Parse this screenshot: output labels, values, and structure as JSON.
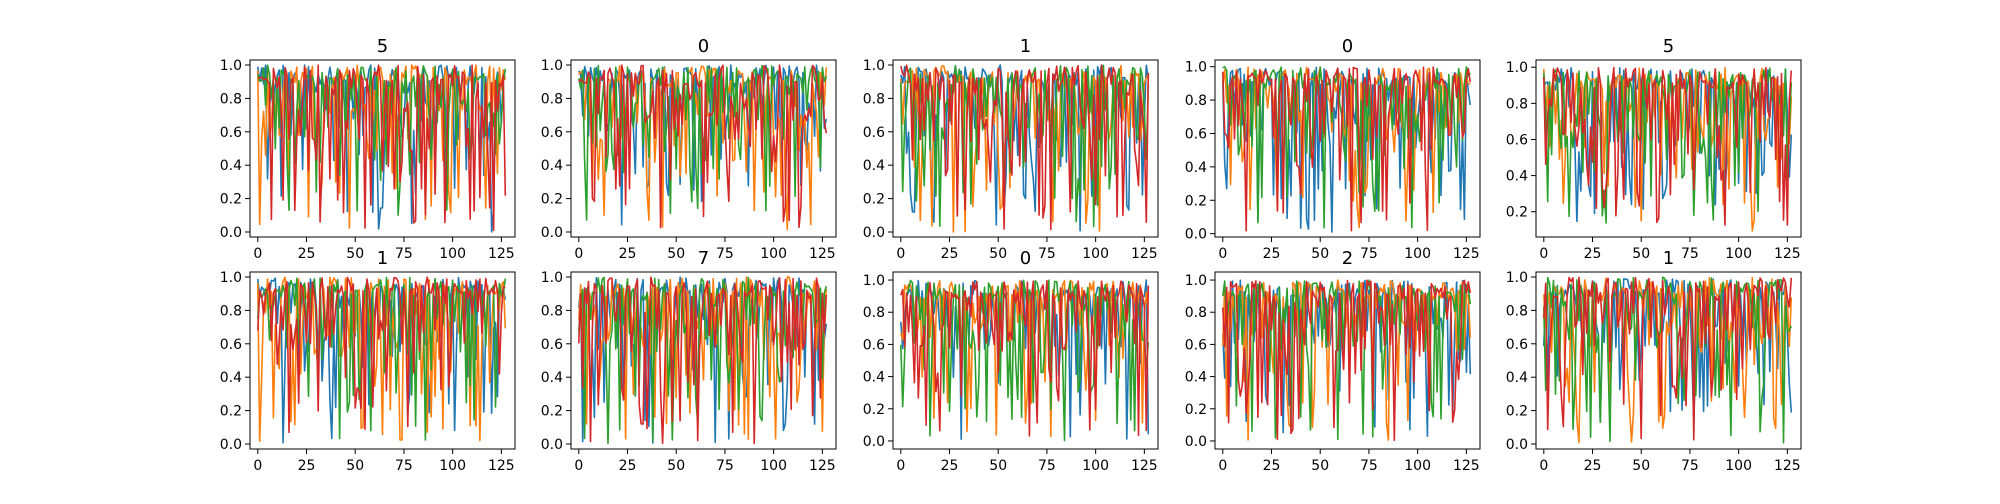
{
  "figure": {
    "series_colors": [
      "#1f77b4",
      "#ff7f0e",
      "#2ca02c",
      "#d62728"
    ]
  },
  "chart_data": [
    {
      "type": "line",
      "title": "5",
      "xlabel": "",
      "ylabel": "",
      "xlim": [
        -4,
        132
      ],
      "ylim": [
        -0.03,
        1.03
      ],
      "x_ticks": [
        0,
        25,
        50,
        75,
        100,
        125
      ],
      "x_tick_labels": [
        "0",
        "25",
        "50",
        "75",
        "100",
        "125"
      ],
      "y_ticks": [
        0.0,
        0.2,
        0.4,
        0.6,
        0.8,
        1.0
      ],
      "y_tick_labels": [
        "0.0",
        "0.2",
        "0.4",
        "0.6",
        "0.8",
        "1.0"
      ],
      "x_range": [
        0,
        127
      ],
      "n_points": 128,
      "series_count": 4,
      "grid": false,
      "legend": false
    },
    {
      "type": "line",
      "title": "0",
      "xlabel": "",
      "ylabel": "",
      "xlim": [
        -4,
        132
      ],
      "ylim": [
        -0.03,
        1.03
      ],
      "x_ticks": [
        0,
        25,
        50,
        75,
        100,
        125
      ],
      "x_tick_labels": [
        "0",
        "25",
        "50",
        "75",
        "100",
        "125"
      ],
      "y_ticks": [
        0.0,
        0.2,
        0.4,
        0.6,
        0.8,
        1.0
      ],
      "y_tick_labels": [
        "0.0",
        "0.2",
        "0.4",
        "0.6",
        "0.8",
        "1.0"
      ],
      "x_range": [
        0,
        127
      ],
      "n_points": 128,
      "series_count": 4,
      "grid": false,
      "legend": false
    },
    {
      "type": "line",
      "title": "1",
      "xlabel": "",
      "ylabel": "",
      "xlim": [
        -4,
        132
      ],
      "ylim": [
        -0.03,
        1.03
      ],
      "x_ticks": [
        0,
        25,
        50,
        75,
        100,
        125
      ],
      "x_tick_labels": [
        "0",
        "25",
        "50",
        "75",
        "100",
        "125"
      ],
      "y_ticks": [
        0.0,
        0.2,
        0.4,
        0.6,
        0.8,
        1.0
      ],
      "y_tick_labels": [
        "0.0",
        "0.2",
        "0.4",
        "0.6",
        "0.8",
        "1.0"
      ],
      "x_range": [
        0,
        127
      ],
      "n_points": 128,
      "series_count": 4,
      "grid": false,
      "legend": false
    },
    {
      "type": "line",
      "title": "0",
      "xlabel": "",
      "ylabel": "",
      "xlim": [
        -4,
        132
      ],
      "ylim": [
        -0.02,
        1.04
      ],
      "x_ticks": [
        0,
        25,
        50,
        75,
        100,
        125
      ],
      "x_tick_labels": [
        "0",
        "25",
        "50",
        "75",
        "100",
        "125"
      ],
      "y_ticks": [
        0.0,
        0.2,
        0.4,
        0.6,
        0.8,
        1.0
      ],
      "y_tick_labels": [
        "0.0",
        "0.2",
        "0.4",
        "0.6",
        "0.8",
        "1.0"
      ],
      "x_range": [
        0,
        127
      ],
      "n_points": 128,
      "series_count": 4,
      "grid": false,
      "legend": false
    },
    {
      "type": "line",
      "title": "5",
      "xlabel": "",
      "ylabel": "",
      "xlim": [
        -4,
        132
      ],
      "ylim": [
        0.06,
        1.04
      ],
      "x_ticks": [
        0,
        25,
        50,
        75,
        100,
        125
      ],
      "x_tick_labels": [
        "0",
        "25",
        "50",
        "75",
        "100",
        "125"
      ],
      "y_ticks": [
        0.2,
        0.4,
        0.6,
        0.8,
        1.0
      ],
      "y_tick_labels": [
        "0.2",
        "0.4",
        "0.6",
        "0.8",
        "1.0"
      ],
      "x_range": [
        0,
        127
      ],
      "n_points": 128,
      "series_count": 4,
      "grid": false,
      "legend": false
    },
    {
      "type": "line",
      "title": "1",
      "xlabel": "",
      "ylabel": "",
      "xlim": [
        -4,
        132
      ],
      "ylim": [
        -0.03,
        1.03
      ],
      "x_ticks": [
        0,
        25,
        50,
        75,
        100,
        125
      ],
      "x_tick_labels": [
        "0",
        "25",
        "50",
        "75",
        "100",
        "125"
      ],
      "y_ticks": [
        0.0,
        0.2,
        0.4,
        0.6,
        0.8,
        1.0
      ],
      "y_tick_labels": [
        "0.0",
        "0.2",
        "0.4",
        "0.6",
        "0.8",
        "1.0"
      ],
      "x_range": [
        0,
        127
      ],
      "n_points": 128,
      "series_count": 4,
      "grid": false,
      "legend": false
    },
    {
      "type": "line",
      "title": "7",
      "xlabel": "",
      "ylabel": "",
      "xlim": [
        -4,
        132
      ],
      "ylim": [
        -0.03,
        1.03
      ],
      "x_ticks": [
        0,
        25,
        50,
        75,
        100,
        125
      ],
      "x_tick_labels": [
        "0",
        "25",
        "50",
        "75",
        "100",
        "125"
      ],
      "y_ticks": [
        0.0,
        0.2,
        0.4,
        0.6,
        0.8,
        1.0
      ],
      "y_tick_labels": [
        "0.0",
        "0.2",
        "0.4",
        "0.6",
        "0.8",
        "1.0"
      ],
      "x_range": [
        0,
        127
      ],
      "n_points": 128,
      "series_count": 4,
      "grid": false,
      "legend": false
    },
    {
      "type": "line",
      "title": "0",
      "xlabel": "",
      "ylabel": "",
      "xlim": [
        -4,
        132
      ],
      "ylim": [
        -0.05,
        1.05
      ],
      "x_ticks": [
        0,
        25,
        50,
        75,
        100,
        125
      ],
      "x_tick_labels": [
        "0",
        "25",
        "50",
        "75",
        "100",
        "125"
      ],
      "y_ticks": [
        0.0,
        0.2,
        0.4,
        0.6,
        0.8,
        1.0
      ],
      "y_tick_labels": [
        "0.0",
        "0.2",
        "0.4",
        "0.6",
        "0.8",
        "1.0"
      ],
      "x_range": [
        0,
        127
      ],
      "n_points": 128,
      "series_count": 4,
      "grid": false,
      "legend": false
    },
    {
      "type": "line",
      "title": "2",
      "xlabel": "",
      "ylabel": "",
      "xlim": [
        -4,
        132
      ],
      "ylim": [
        -0.05,
        1.05
      ],
      "x_ticks": [
        0,
        25,
        50,
        75,
        100,
        125
      ],
      "x_tick_labels": [
        "0",
        "25",
        "50",
        "75",
        "100",
        "125"
      ],
      "y_ticks": [
        0.0,
        0.2,
        0.4,
        0.6,
        0.8,
        1.0
      ],
      "y_tick_labels": [
        "0.0",
        "0.2",
        "0.4",
        "0.6",
        "0.8",
        "1.0"
      ],
      "x_range": [
        0,
        127
      ],
      "n_points": 128,
      "series_count": 4,
      "grid": false,
      "legend": false
    },
    {
      "type": "line",
      "title": "1",
      "xlabel": "",
      "ylabel": "",
      "xlim": [
        -4,
        132
      ],
      "ylim": [
        -0.03,
        1.03
      ],
      "x_ticks": [
        0,
        25,
        50,
        75,
        100,
        125
      ],
      "x_tick_labels": [
        "0",
        "25",
        "50",
        "75",
        "100",
        "125"
      ],
      "y_ticks": [
        0.0,
        0.2,
        0.4,
        0.6,
        0.8,
        1.0
      ],
      "y_tick_labels": [
        "0.0",
        "0.2",
        "0.4",
        "0.6",
        "0.8",
        "1.0"
      ],
      "x_range": [
        0,
        127
      ],
      "n_points": 128,
      "series_count": 4,
      "grid": false,
      "legend": false
    }
  ]
}
